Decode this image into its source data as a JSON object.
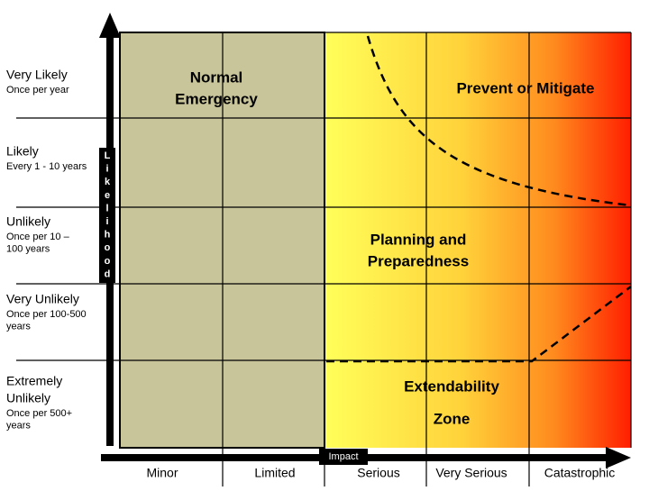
{
  "axes": {
    "y_label": "Likelihood",
    "x_label": "Impact"
  },
  "rows": [
    {
      "label": [
        "Very Likely"
      ],
      "detail": [
        "Once per year"
      ]
    },
    {
      "label": [
        "Likely"
      ],
      "detail": [
        "Every 1 - 10 years"
      ]
    },
    {
      "label": [
        "Unlikely"
      ],
      "detail": [
        "Once per 10 –",
        "100 years"
      ]
    },
    {
      "label": [
        "Very Unlikely"
      ],
      "detail": [
        "Once per 100-500",
        "years"
      ]
    },
    {
      "label": [
        "Extremely",
        "Unlikely"
      ],
      "detail": [
        "Once per 500+",
        "years"
      ]
    }
  ],
  "columns": [
    "Minor",
    "Limited",
    "Serious",
    "Very Serious",
    "Catastrophic"
  ],
  "zones": [
    {
      "lines": [
        "Normal",
        "Emergency"
      ]
    },
    {
      "lines": [
        "Prevent or Mitigate"
      ]
    },
    {
      "lines": [
        "Planning and",
        "Preparedness"
      ]
    },
    {
      "lines": [
        "Extendability",
        "Zone"
      ]
    }
  ]
}
